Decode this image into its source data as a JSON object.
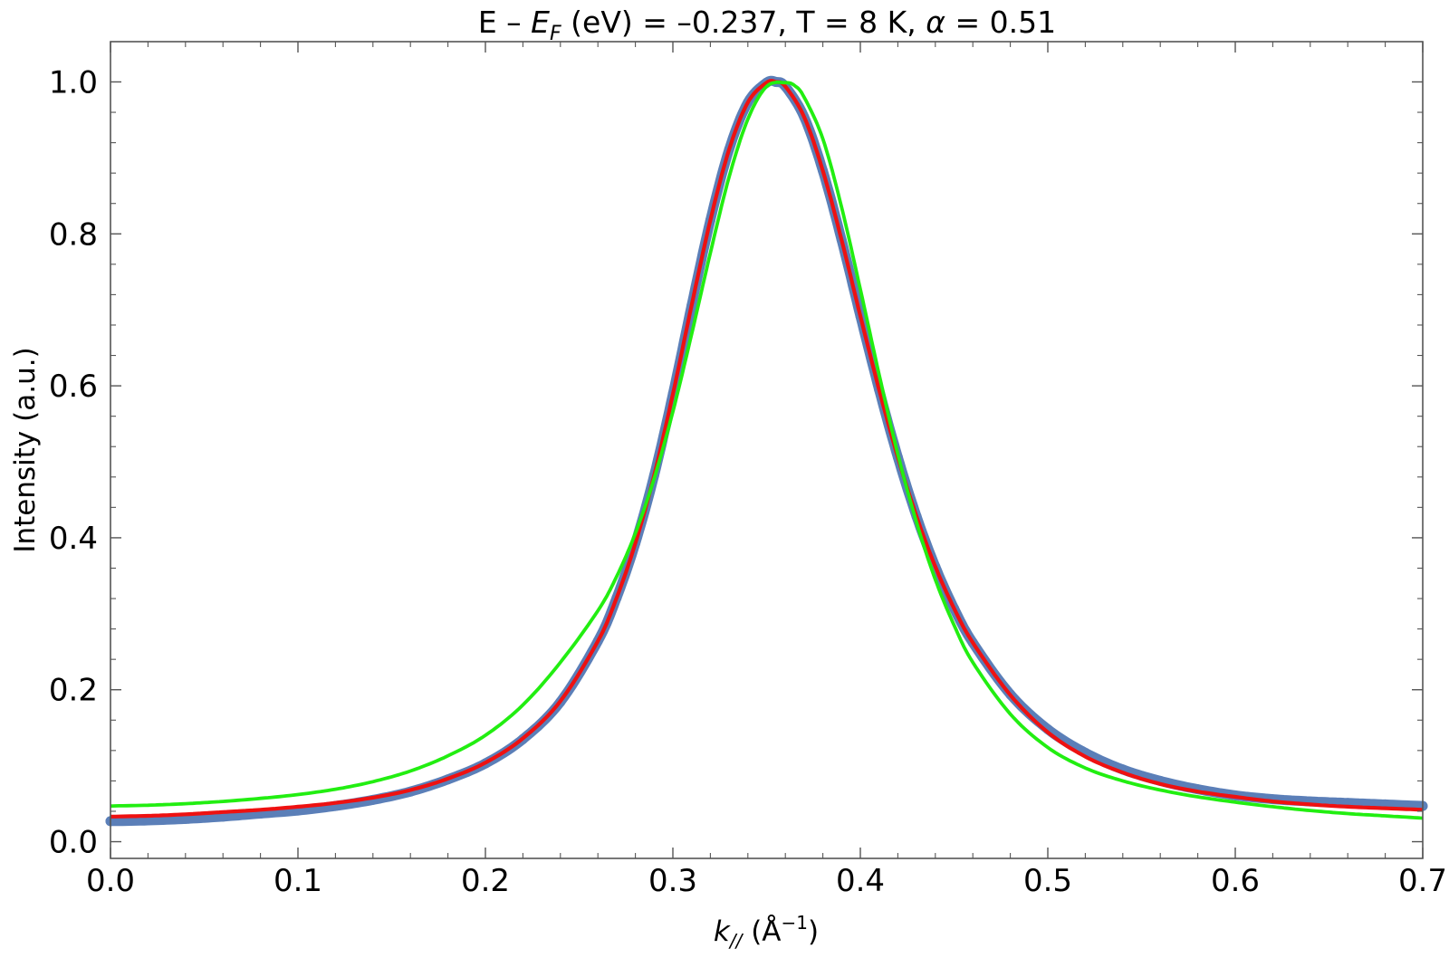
{
  "chart_data": {
    "type": "scatter",
    "title": {
      "prefix": "E – ",
      "ef_symbol": "E",
      "ef_sub": "F",
      "mid": " (eV) = –0.237, T = 8 K, ",
      "alpha_symbol": "α",
      "suffix": " = 0.51"
    },
    "xlabel": {
      "symbol": "k",
      "sub": "//",
      "unit_open": " (Å",
      "unit_sup": "−1",
      "unit_close": ")"
    },
    "ylabel": "Intensity (a.u.)",
    "xlim": [
      0.0,
      0.7
    ],
    "ylim": [
      -0.022,
      1.053
    ],
    "xticks": [
      "0.0",
      "0.1",
      "0.2",
      "0.3",
      "0.4",
      "0.5",
      "0.6",
      "0.7"
    ],
    "yticks": [
      "0.0",
      "0.2",
      "0.4",
      "0.6",
      "0.8",
      "1.0"
    ],
    "grid": false,
    "legend": "none",
    "series": [
      {
        "style": "points",
        "color": "#5b7fb8",
        "x": [
          0.0,
          0.02,
          0.04,
          0.06,
          0.08,
          0.1,
          0.12,
          0.14,
          0.16,
          0.18,
          0.2,
          0.22,
          0.24,
          0.26,
          0.27,
          0.28,
          0.29,
          0.3,
          0.31,
          0.32,
          0.33,
          0.34,
          0.35,
          0.355,
          0.36,
          0.37,
          0.38,
          0.39,
          0.4,
          0.41,
          0.42,
          0.43,
          0.44,
          0.45,
          0.46,
          0.48,
          0.5,
          0.52,
          0.54,
          0.56,
          0.58,
          0.6,
          0.62,
          0.64,
          0.66,
          0.68,
          0.7
        ],
        "y": [
          0.027,
          0.028,
          0.03,
          0.033,
          0.037,
          0.041,
          0.047,
          0.055,
          0.066,
          0.082,
          0.103,
          0.135,
          0.184,
          0.264,
          0.321,
          0.393,
          0.482,
          0.589,
          0.706,
          0.818,
          0.911,
          0.973,
          0.999,
          1.0,
          0.994,
          0.954,
          0.883,
          0.792,
          0.692,
          0.595,
          0.506,
          0.428,
          0.362,
          0.307,
          0.262,
          0.194,
          0.148,
          0.117,
          0.095,
          0.08,
          0.069,
          0.061,
          0.056,
          0.053,
          0.051,
          0.049,
          0.047
        ]
      },
      {
        "style": "line",
        "color": "#ee1111",
        "x": [
          0.0,
          0.02,
          0.04,
          0.06,
          0.08,
          0.1,
          0.12,
          0.14,
          0.16,
          0.18,
          0.2,
          0.22,
          0.24,
          0.26,
          0.27,
          0.28,
          0.29,
          0.3,
          0.31,
          0.32,
          0.33,
          0.34,
          0.35,
          0.355,
          0.36,
          0.37,
          0.38,
          0.39,
          0.4,
          0.41,
          0.42,
          0.43,
          0.44,
          0.45,
          0.46,
          0.48,
          0.5,
          0.52,
          0.54,
          0.56,
          0.58,
          0.6,
          0.62,
          0.64,
          0.66,
          0.68,
          0.7
        ],
        "y": [
          0.033,
          0.034,
          0.036,
          0.039,
          0.042,
          0.046,
          0.051,
          0.058,
          0.068,
          0.083,
          0.104,
          0.136,
          0.185,
          0.264,
          0.321,
          0.393,
          0.482,
          0.589,
          0.706,
          0.818,
          0.911,
          0.973,
          0.999,
          1.0,
          0.994,
          0.954,
          0.883,
          0.792,
          0.692,
          0.595,
          0.506,
          0.428,
          0.362,
          0.307,
          0.262,
          0.193,
          0.144,
          0.112,
          0.091,
          0.076,
          0.066,
          0.059,
          0.053,
          0.049,
          0.046,
          0.044,
          0.042
        ]
      },
      {
        "style": "line",
        "color": "#22ee11",
        "x": [
          0.0,
          0.02,
          0.04,
          0.06,
          0.08,
          0.1,
          0.12,
          0.14,
          0.16,
          0.18,
          0.2,
          0.22,
          0.24,
          0.26,
          0.27,
          0.28,
          0.29,
          0.3,
          0.31,
          0.32,
          0.33,
          0.34,
          0.35,
          0.36,
          0.365,
          0.37,
          0.38,
          0.39,
          0.4,
          0.41,
          0.42,
          0.43,
          0.44,
          0.45,
          0.46,
          0.48,
          0.5,
          0.52,
          0.54,
          0.56,
          0.58,
          0.6,
          0.62,
          0.64,
          0.66,
          0.68,
          0.7
        ],
        "y": [
          0.047,
          0.048,
          0.05,
          0.053,
          0.057,
          0.062,
          0.069,
          0.079,
          0.093,
          0.113,
          0.14,
          0.18,
          0.236,
          0.304,
          0.349,
          0.406,
          0.478,
          0.566,
          0.668,
          0.775,
          0.875,
          0.951,
          0.994,
          0.999,
          0.995,
          0.98,
          0.925,
          0.835,
          0.727,
          0.615,
          0.51,
          0.42,
          0.345,
          0.285,
          0.236,
          0.168,
          0.124,
          0.097,
          0.08,
          0.068,
          0.059,
          0.052,
          0.046,
          0.041,
          0.037,
          0.034,
          0.031
        ]
      }
    ]
  }
}
